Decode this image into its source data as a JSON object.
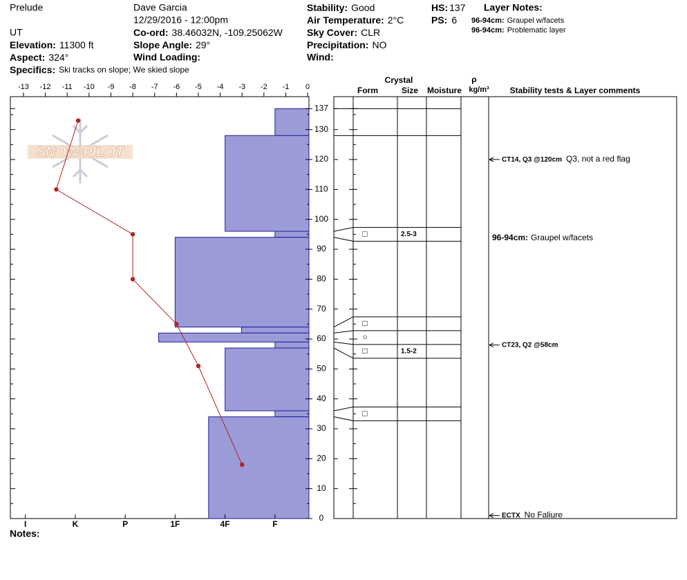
{
  "header": {
    "location": "Prelude",
    "state": "UT",
    "elevation": {
      "label": "Elevation:",
      "value": "11300 ft"
    },
    "aspect": {
      "label": "Aspect:",
      "value": "324°"
    },
    "specifics": {
      "label": "Specifics:",
      "value": "Ski tracks on slope; We skied slope"
    },
    "observer": "Dave Garcia",
    "datetime": "12/29/2016 - 12:00pm",
    "coord": {
      "label": "Co-ord:",
      "value": "38.46032N, -109.25062W"
    },
    "slope_angle": {
      "label": "Slope Angle:",
      "value": "29°"
    },
    "wind_loading": {
      "label": "Wind Loading:"
    },
    "stability": {
      "label": "Stability:",
      "value": "Good"
    },
    "air_temperature": {
      "label": "Air Temperature:",
      "value": "2°C"
    },
    "sky_cover": {
      "label": "Sky Cover:",
      "value": "CLR"
    },
    "precipitation": {
      "label": "Precipitation:",
      "value": "NO"
    },
    "wind": {
      "label": "Wind:"
    },
    "hs": {
      "label": "HS:",
      "value": "137"
    },
    "ps": {
      "label": "PS:",
      "value": "6"
    },
    "layer_notes": {
      "label": "Layer Notes:",
      "items": [
        {
          "range": "96-94cm:",
          "text": "Graupel w/facets"
        },
        {
          "range": "96-94cm:",
          "text": "Problematic layer"
        }
      ]
    },
    "logo": "SNOW PILOT"
  },
  "chart_data": {
    "type": "snowprofile",
    "ylim": [
      0,
      141
    ],
    "yticks": [
      0,
      10,
      20,
      30,
      40,
      50,
      60,
      70,
      80,
      90,
      100,
      110,
      120,
      130,
      137
    ],
    "minor_yticks": [
      5,
      15,
      25,
      35,
      45,
      55,
      65,
      75,
      85,
      95,
      105,
      115,
      125,
      135
    ],
    "xlim": [
      -13.6,
      0.06
    ],
    "xticks": [
      -13,
      -12,
      -11,
      -10,
      -9,
      -8,
      -7,
      -6,
      -5,
      -4,
      -3,
      -2,
      -1,
      0
    ],
    "hardness_lim": [
      6.3,
      0.32
    ],
    "hardness_ticks": [
      {
        "value": 6,
        "label": "I"
      },
      {
        "value": 5,
        "label": "K"
      },
      {
        "value": 4,
        "label": "P"
      },
      {
        "value": 3,
        "label": "1F"
      },
      {
        "value": 2,
        "label": "4F"
      },
      {
        "value": 1,
        "label": "F"
      }
    ],
    "temperature": {
      "color": "#b22222",
      "values": [
        -10.5,
        -11.5,
        -8,
        -8,
        -6,
        -5,
        -3
      ],
      "heights": [
        133,
        110,
        95,
        80,
        65,
        51,
        18
      ]
    },
    "layers": {
      "color": "#9b9bd8",
      "edge": "#1f1f99",
      "tops": [
        137,
        128,
        96,
        94,
        64,
        62,
        59,
        57,
        36,
        34
      ],
      "bottoms": [
        128,
        96,
        94,
        64,
        62,
        59,
        57,
        36,
        34,
        0
      ],
      "hardness": [
        1,
        2,
        1,
        3,
        1.67,
        3.33,
        1,
        2,
        1,
        2.33
      ],
      "forms": [
        null,
        null,
        "□",
        null,
        "□",
        "○",
        "□",
        null,
        "□",
        null
      ],
      "sizes": [
        null,
        null,
        "2.5-3",
        null,
        null,
        null,
        "1.5-2",
        null,
        null,
        null
      ]
    },
    "stability_tests": [
      {
        "label": "CT14, Q3 @120cm",
        "comment": "Q3, not a red flag",
        "height": 120
      },
      {
        "label": "CT23, Q2 @58cm",
        "height": 58
      },
      {
        "label": "ECTX",
        "comment": "No Faliure",
        "height": 1
      }
    ],
    "layer_comments": [
      {
        "range": "96-94cm:",
        "text": "Graupel w/facets"
      }
    ]
  },
  "columns": {
    "crystal": "Crystal",
    "form": "Form",
    "size": "Size",
    "moisture": "Moisture",
    "density": "ρ",
    "density_unit": "kg/m³",
    "stability": "Stability tests & Layer comments"
  },
  "notes": "Notes:"
}
